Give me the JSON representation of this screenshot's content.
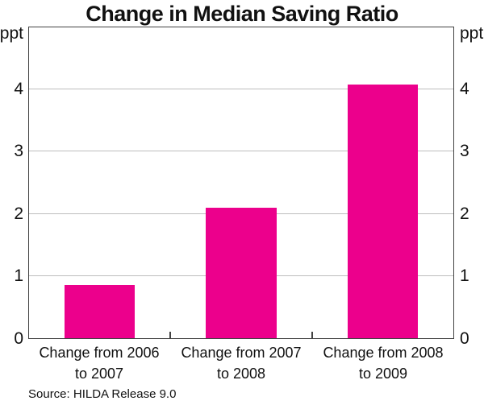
{
  "title": "Change in Median Saving Ratio",
  "axis_unit_left": "ppt",
  "axis_unit_right": "ppt",
  "source": "Source: HILDA Release 9.0",
  "colors": {
    "bar": "#EC008C",
    "grid": "#bdbdbd",
    "frame": "#424242",
    "text": "#111111",
    "background": "#ffffff"
  },
  "chart_data": {
    "type": "bar",
    "title": "Change in Median Saving Ratio",
    "categories": [
      "Change from 2006 to 2007",
      "Change from 2007 to 2008",
      "Change from 2008 to 2009"
    ],
    "values": [
      0.85,
      2.1,
      4.08
    ],
    "xlabel": "",
    "ylabel": "ppt",
    "ylabel_right": "ppt",
    "ylim": [
      0,
      5
    ],
    "yticks": [
      0,
      1,
      2,
      3,
      4
    ],
    "grid": "horizontal",
    "legend": "none",
    "bar_width_fraction": 0.5
  }
}
